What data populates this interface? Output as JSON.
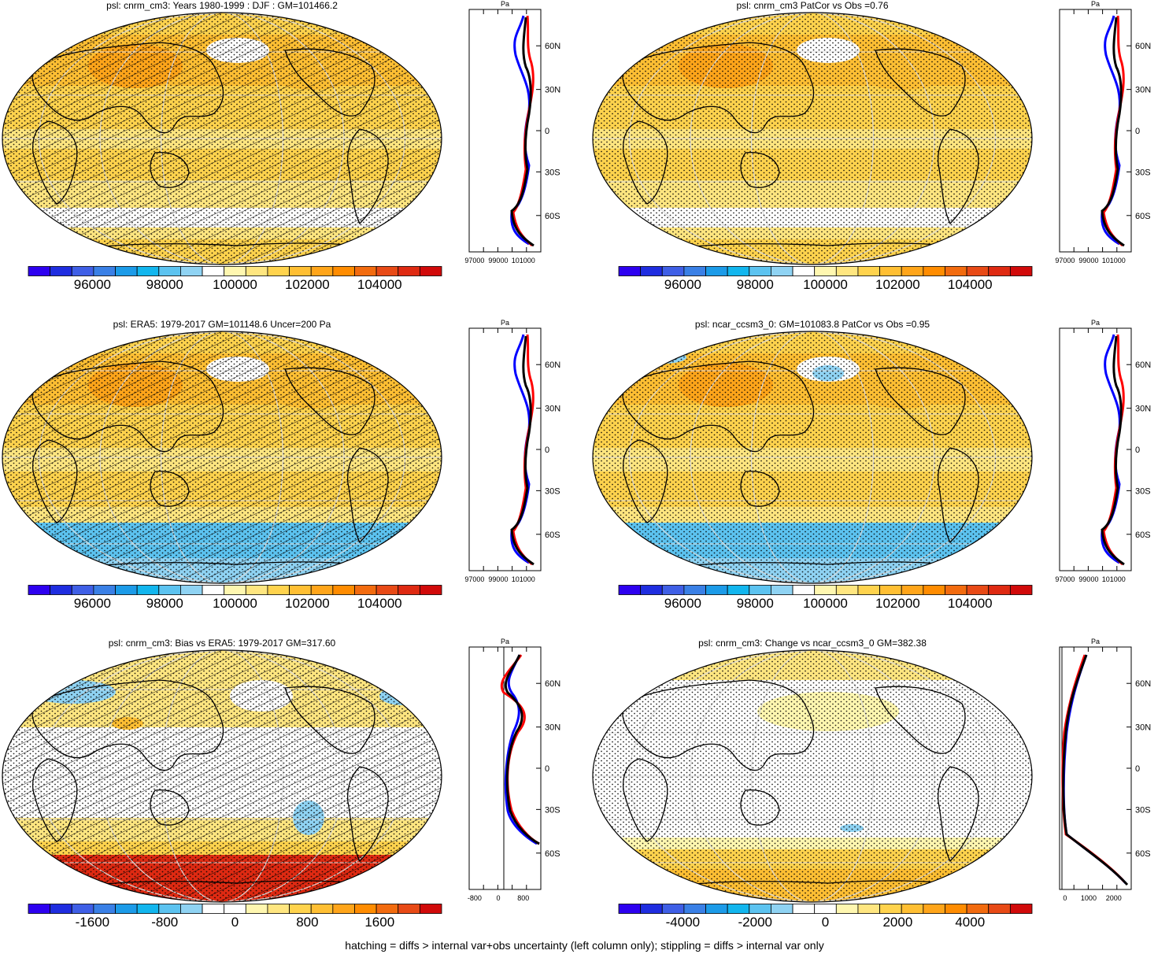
{
  "panels": [
    {
      "id": "model",
      "title": "psl: cnrm_cm3: Years 1980-1999 : DJF : GM=101466.2",
      "fill": "orange",
      "hatch": true,
      "cbar": {
        "colors": [
          "#2d00f0",
          "#1f2de0",
          "#3f5fe6",
          "#3a80e6",
          "#1c9be8",
          "#12b6ee",
          "#5cc3f0",
          "#8fd3f3",
          "#ffffff",
          "#fff7b0",
          "#ffe680",
          "#ffd34d",
          "#ffbf33",
          "#ffa51a",
          "#ff8c00",
          "#f26b0f",
          "#e84a16",
          "#df2a12",
          "#d10a0a"
        ],
        "labels": [
          "96000",
          "98000",
          "100000",
          "102000",
          "104000"
        ],
        "label_pos": [
          0.155,
          0.33,
          0.5,
          0.675,
          0.85
        ]
      },
      "profile": {
        "ylabels": [
          "60N",
          "30N",
          "0",
          "30S",
          "60S"
        ],
        "xlabels": [
          "97000",
          "99000",
          "101000"
        ],
        "unit": "Pa"
      }
    },
    {
      "id": "model-patcor",
      "title": "psl: cnrm_cm3 PatCor vs Obs =0.76",
      "fill": "orange",
      "hatch": false,
      "cbar": {
        "colors": [
          "#2d00f0",
          "#1f2de0",
          "#3f5fe6",
          "#3a80e6",
          "#1c9be8",
          "#12b6ee",
          "#5cc3f0",
          "#8fd3f3",
          "#ffffff",
          "#fff7b0",
          "#ffe680",
          "#ffd34d",
          "#ffbf33",
          "#ffa51a",
          "#ff8c00",
          "#f26b0f",
          "#e84a16",
          "#df2a12",
          "#d10a0a"
        ],
        "labels": [
          "96000",
          "98000",
          "100000",
          "102000",
          "104000"
        ],
        "label_pos": [
          0.155,
          0.33,
          0.5,
          0.675,
          0.85
        ]
      },
      "profile": {
        "ylabels": [
          "60N",
          "30N",
          "0",
          "30S",
          "60S"
        ],
        "xlabels": [
          "97000",
          "99000",
          "101000"
        ],
        "unit": "Pa"
      }
    },
    {
      "id": "obs",
      "title": "psl: ERA5: 1979-2017 GM=101148.6 Uncer=200 Pa",
      "fill": "orange-blue-south",
      "hatch": true,
      "cbar": {
        "colors": [
          "#2d00f0",
          "#1f2de0",
          "#3f5fe6",
          "#3a80e6",
          "#1c9be8",
          "#12b6ee",
          "#5cc3f0",
          "#8fd3f3",
          "#ffffff",
          "#fff7b0",
          "#ffe680",
          "#ffd34d",
          "#ffbf33",
          "#ffa51a",
          "#ff8c00",
          "#f26b0f",
          "#e84a16",
          "#df2a12",
          "#d10a0a"
        ],
        "labels": [
          "96000",
          "98000",
          "100000",
          "102000",
          "104000"
        ],
        "label_pos": [
          0.155,
          0.33,
          0.5,
          0.675,
          0.85
        ]
      },
      "profile": {
        "ylabels": [
          "60N",
          "30N",
          "0",
          "30S",
          "60S"
        ],
        "xlabels": [
          "97000",
          "99000",
          "101000"
        ],
        "unit": "Pa"
      }
    },
    {
      "id": "ref-model",
      "title": "psl: ncar_ccsm3_0: GM=101083.8 PatCor vs Obs =0.95",
      "fill": "orange-blue-south",
      "hatch": false,
      "cbar": {
        "colors": [
          "#2d00f0",
          "#1f2de0",
          "#3f5fe6",
          "#3a80e6",
          "#1c9be8",
          "#12b6ee",
          "#5cc3f0",
          "#8fd3f3",
          "#ffffff",
          "#fff7b0",
          "#ffe680",
          "#ffd34d",
          "#ffbf33",
          "#ffa51a",
          "#ff8c00",
          "#f26b0f",
          "#e84a16",
          "#df2a12",
          "#d10a0a"
        ],
        "labels": [
          "96000",
          "98000",
          "100000",
          "102000",
          "104000"
        ],
        "label_pos": [
          0.155,
          0.33,
          0.5,
          0.675,
          0.85
        ]
      },
      "profile": {
        "ylabels": [
          "60N",
          "30N",
          "0",
          "30S",
          "60S"
        ],
        "xlabels": [
          "97000",
          "99000",
          "101000"
        ],
        "unit": "Pa"
      }
    },
    {
      "id": "bias",
      "title": "psl: cnrm_cm3: Bias vs ERA5: 1979-2017 GM=317.60",
      "fill": "bias",
      "hatch": true,
      "cbar": {
        "colors": [
          "#2d00f0",
          "#1f2de0",
          "#3f5fe6",
          "#3a80e6",
          "#1c9be8",
          "#12b6ee",
          "#5cc3f0",
          "#8fd3f3",
          "#ffffff",
          "#ffffff",
          "#fff7b0",
          "#ffe680",
          "#ffd34d",
          "#ffbf33",
          "#ffa51a",
          "#ff8c00",
          "#f26b0f",
          "#e84a16",
          "#d10a0a"
        ],
        "labels": [
          "-1600",
          "-800",
          "0",
          "800",
          "1600"
        ],
        "label_pos": [
          0.155,
          0.33,
          0.5,
          0.675,
          0.85
        ]
      },
      "profile": {
        "ylabels": [
          "60N",
          "30N",
          "0",
          "30S",
          "60S"
        ],
        "xlabels": [
          "-800",
          "0",
          "800"
        ],
        "unit": "Pa"
      }
    },
    {
      "id": "change",
      "title": "psl: cnrm_cm3: Change vs ncar_ccsm3_0 GM=382.38",
      "fill": "change",
      "hatch": false,
      "cbar": {
        "colors": [
          "#2d00f0",
          "#1f2de0",
          "#3f5fe6",
          "#3a80e6",
          "#1c9be8",
          "#12b6ee",
          "#5cc3f0",
          "#8fd3f3",
          "#ffffff",
          "#ffffff",
          "#fff7b0",
          "#ffe680",
          "#ffd34d",
          "#ffbf33",
          "#ffa51a",
          "#ff8c00",
          "#f26b0f",
          "#e84a16",
          "#d10a0a"
        ],
        "labels": [
          "-4000",
          "-2000",
          "0",
          "2000",
          "4000"
        ],
        "label_pos": [
          0.155,
          0.33,
          0.5,
          0.675,
          0.85
        ]
      },
      "profile": {
        "ylabels": [
          "60N",
          "30N",
          "0",
          "30S",
          "60S"
        ],
        "xlabels": [
          "0",
          "1000",
          "2000"
        ],
        "unit": "Pa"
      }
    }
  ],
  "footnote": "hatching = diffs > internal var+obs uncertainty (left column only); stippling = diffs > internal var only"
}
